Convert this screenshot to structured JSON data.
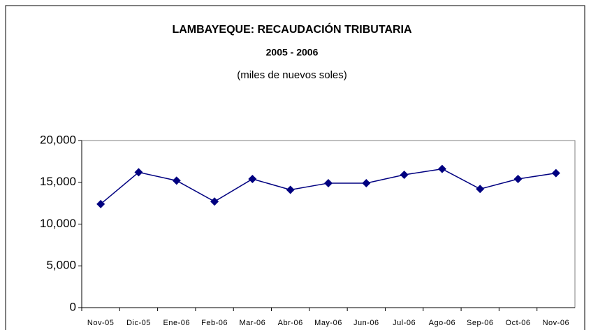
{
  "chart_data": {
    "type": "line",
    "title": "LAMBAYEQUE: RECAUDACIÓN TRIBUTARIA",
    "subtitle": "2005 - 2006",
    "note": "(miles de nuevos soles)",
    "categories": [
      "Nov-05",
      "Dic-05",
      "Ene-06",
      "Feb-06",
      "Mar-06",
      "Abr-06",
      "May-06",
      "Jun-06",
      "Jul-06",
      "Ago-06",
      "Sep-06",
      "Oct-06",
      "Nov-06"
    ],
    "values": [
      12400,
      16200,
      15200,
      12700,
      15400,
      14100,
      14900,
      14900,
      15900,
      16600,
      14200,
      15400,
      16100
    ],
    "color": "#000080",
    "ylim": [
      0,
      20000
    ],
    "yticks": [
      0,
      {
        "value": 5000,
        "label": "5,000"
      },
      {
        "value": 10000,
        "label": "10,000"
      },
      {
        "value": 15000,
        "label": "15,000"
      },
      {
        "value": 20000,
        "label": "20,000"
      }
    ],
    "grid": false
  }
}
